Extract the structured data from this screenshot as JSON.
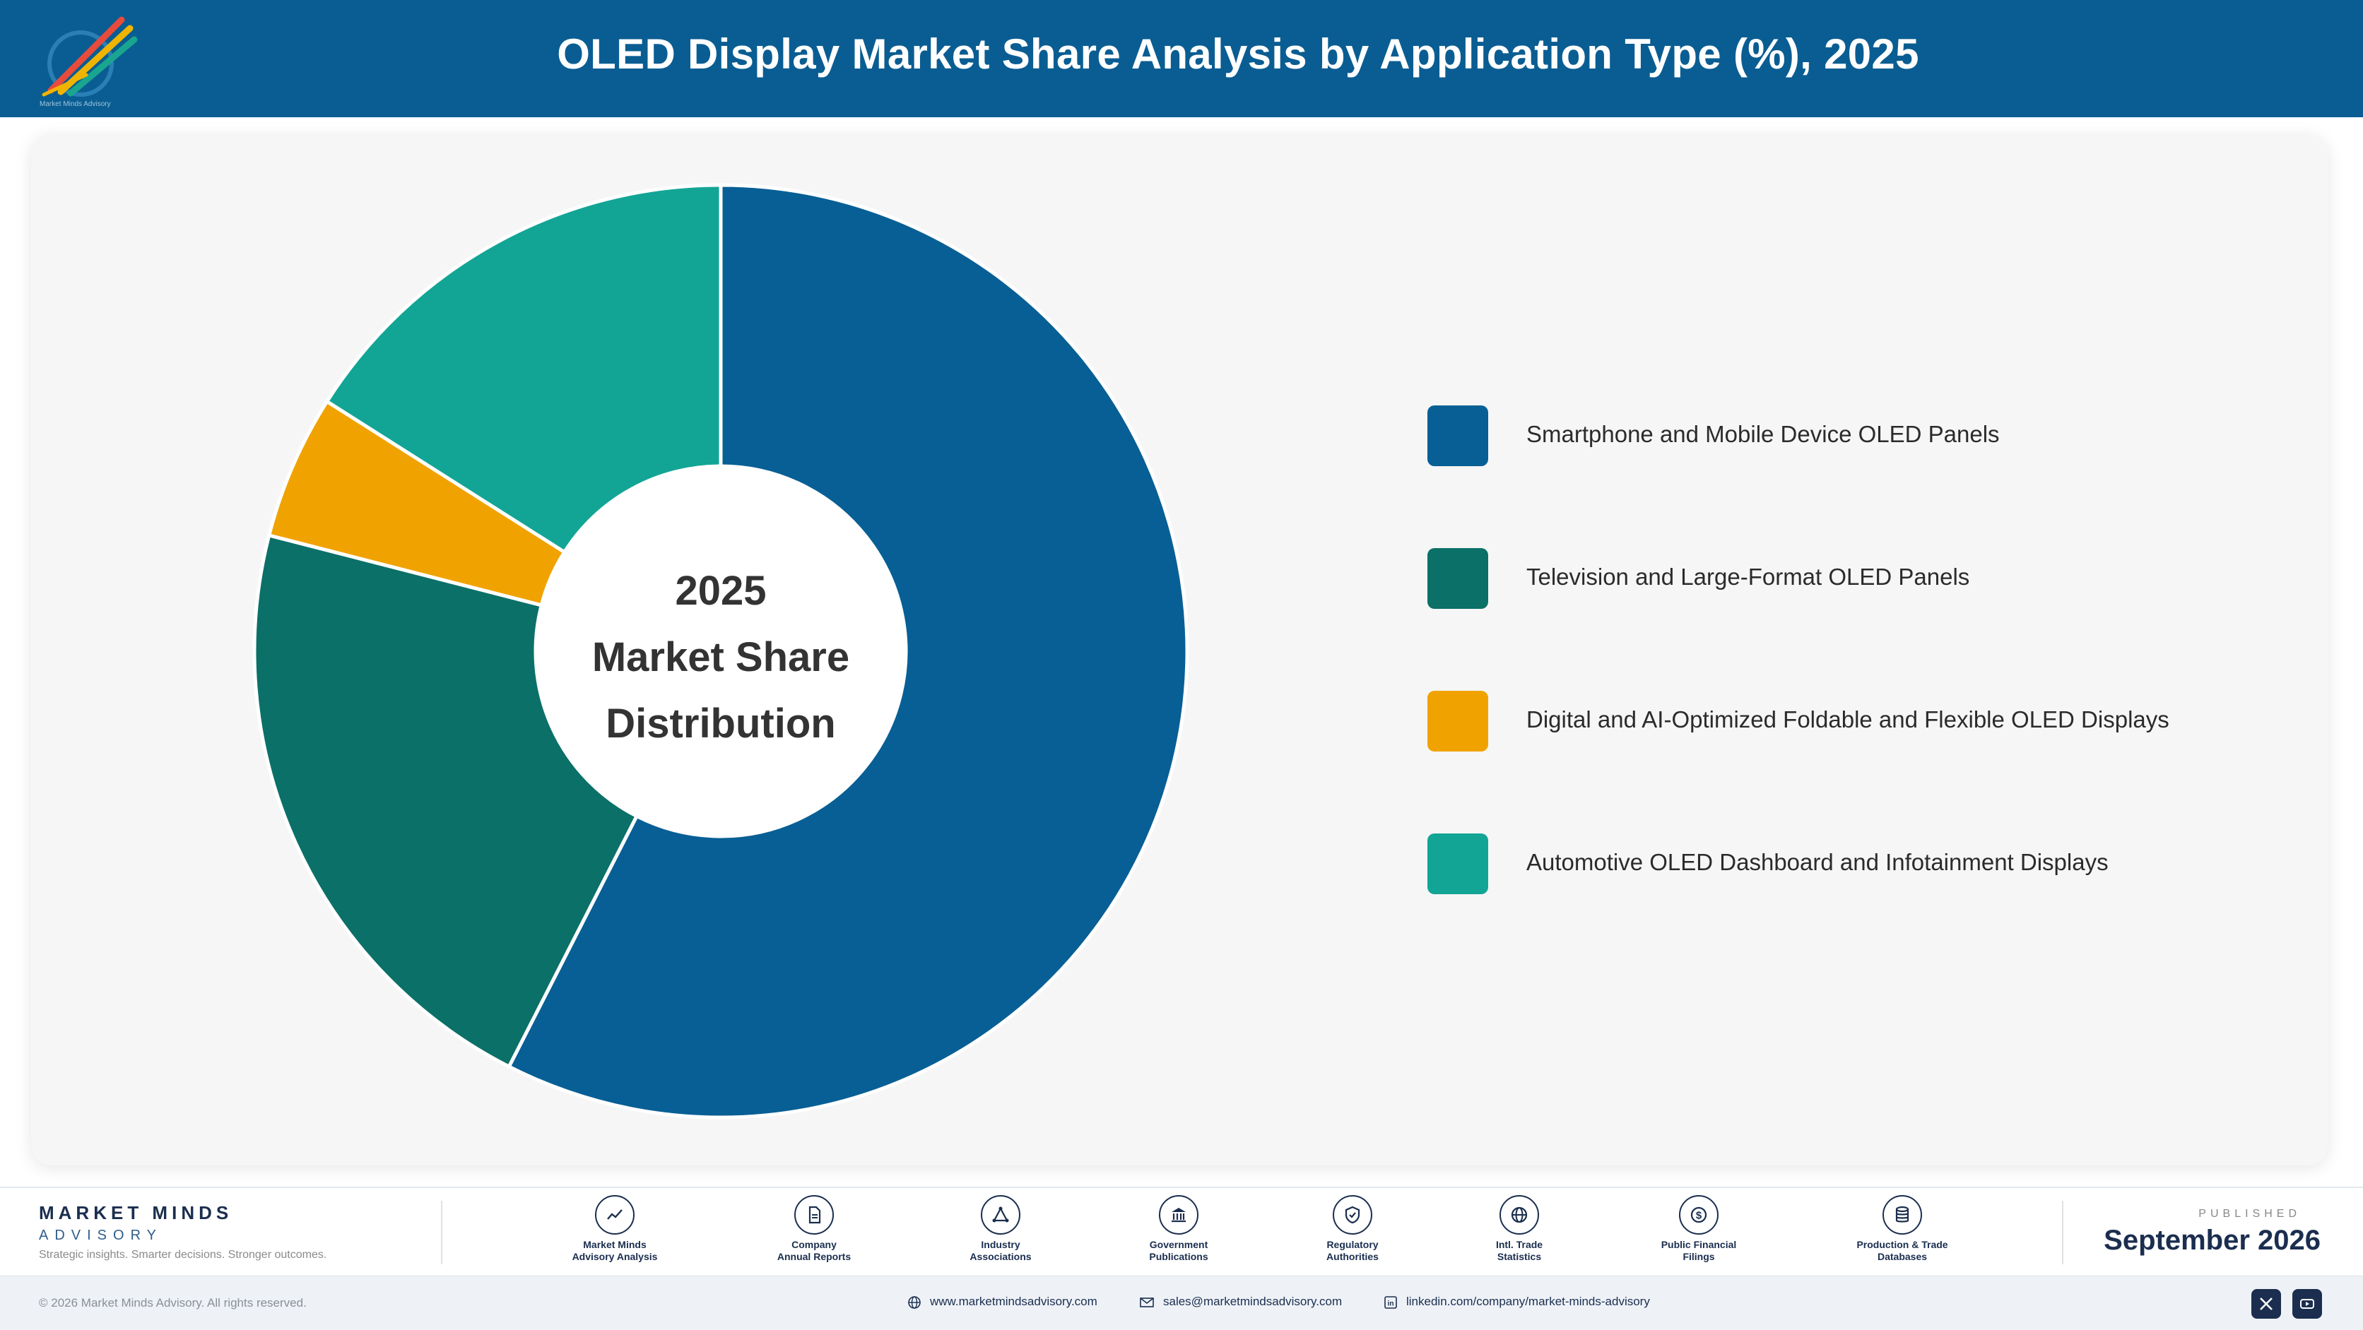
{
  "header": {
    "title": "OLED Display Market Share Analysis by Application Type (%), 2025",
    "logo_caption": "Market Minds Advisory"
  },
  "chart_data": {
    "type": "pie",
    "donut": true,
    "title": "OLED Display Market Share Analysis by Application Type (%), 2025",
    "center_text": [
      "2025",
      "Market Share",
      "Distribution"
    ],
    "categories": [
      "Smartphone and Mobile Device OLED Panels",
      "Television and Large-Format OLED Panels",
      "Digital and AI-Optimized Foldable and Flexible OLED Displays",
      "Automotive OLED Dashboard and Infotainment Displays"
    ],
    "values": [
      57.5,
      21.5,
      5.0,
      16.0
    ],
    "colors": [
      "#075f95",
      "#0b7068",
      "#f0a300",
      "#12a595"
    ],
    "legend_position": "right",
    "data_labels": false
  },
  "footer": {
    "brand_name": "MARKET MINDS",
    "brand_sub": "ADVISORY",
    "brand_tagline": "Strategic insights. Smarter decisions. Stronger outcomes.",
    "sources": [
      {
        "line1": "Market Minds",
        "line2": "Advisory Analysis",
        "icon": "trend-line-icon"
      },
      {
        "line1": "Company",
        "line2": "Annual Reports",
        "icon": "document-icon"
      },
      {
        "line1": "Industry",
        "line2": "Associations",
        "icon": "network-icon"
      },
      {
        "line1": "Government",
        "line2": "Publications",
        "icon": "government-building-icon"
      },
      {
        "line1": "Regulatory",
        "line2": "Authorities",
        "icon": "shield-check-icon"
      },
      {
        "line1": "Intl. Trade",
        "line2": "Statistics",
        "icon": "globe-icon"
      },
      {
        "line1": "Public Financial",
        "line2": "Filings",
        "icon": "dollar-coin-icon"
      },
      {
        "line1": "Production & Trade",
        "line2": "Databases",
        "icon": "database-icon"
      }
    ],
    "published_label": "PUBLISHED",
    "published_date": "September 2026",
    "copyright": "© 2026 Market Minds Advisory. All rights reserved.",
    "website": "www.marketmindsadvisory.com",
    "email": "sales@marketmindsadvisory.com",
    "linkedin": "linkedin.com/company/market-minds-advisory"
  }
}
